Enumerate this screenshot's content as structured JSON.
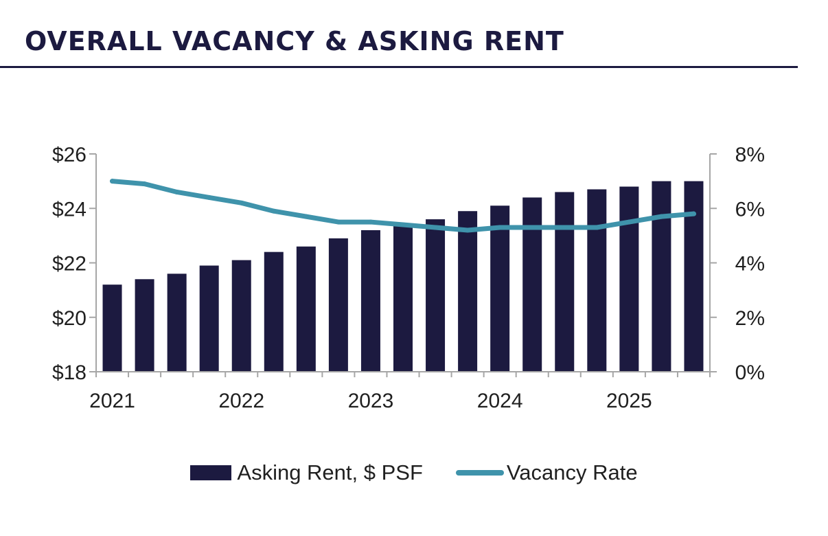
{
  "header": {
    "title": "OVERALL VACANCY & ASKING RENT"
  },
  "colors": {
    "bar": "#1c1a40",
    "line": "#3f93ab",
    "axis": "#a6a6a6",
    "title": "#1c1a40"
  },
  "chart_data": {
    "type": "bar+line",
    "title": "OVERALL VACANCY & ASKING RENT",
    "x": [
      "2021 Q1",
      "2021 Q2",
      "2021 Q3",
      "2021 Q4",
      "2022 Q1",
      "2022 Q2",
      "2022 Q3",
      "2022 Q4",
      "2023 Q1",
      "2023 Q2",
      "2023 Q3",
      "2023 Q4",
      "2024 Q1",
      "2024 Q2",
      "2024 Q3",
      "2024 Q4",
      "2025 Q1",
      "2025 Q2",
      "2025 Q3"
    ],
    "x_tick_labels": [
      "2021",
      "2022",
      "2023",
      "2024",
      "2025"
    ],
    "series": [
      {
        "name": "Asking Rent, $ PSF",
        "type": "bar",
        "axis": "left",
        "values": [
          21.2,
          21.4,
          21.6,
          21.9,
          22.1,
          22.4,
          22.6,
          22.9,
          23.2,
          23.4,
          23.6,
          23.9,
          24.1,
          24.4,
          24.6,
          24.7,
          24.8,
          25.0,
          25.0
        ]
      },
      {
        "name": "Vacancy Rate",
        "type": "line",
        "axis": "right",
        "values": [
          7.0,
          6.9,
          6.6,
          6.4,
          6.2,
          5.9,
          5.7,
          5.5,
          5.5,
          5.4,
          5.3,
          5.2,
          5.3,
          5.3,
          5.3,
          5.3,
          5.5,
          5.7,
          5.8
        ]
      }
    ],
    "y_left": {
      "ylim": [
        18,
        26
      ],
      "ticks": [
        18,
        20,
        22,
        24,
        26
      ],
      "tick_labels": [
        "$18",
        "$20",
        "$22",
        "$24",
        "$26"
      ]
    },
    "y_right": {
      "ylim": [
        0,
        8
      ],
      "ticks": [
        0,
        2,
        4,
        6,
        8
      ],
      "tick_labels": [
        "0%",
        "2%",
        "4%",
        "6%",
        "8%"
      ]
    },
    "grid": false,
    "legend_position": "bottom"
  },
  "legend": {
    "items": [
      {
        "label": "Asking Rent, $ PSF"
      },
      {
        "label": "Vacancy Rate"
      }
    ]
  }
}
